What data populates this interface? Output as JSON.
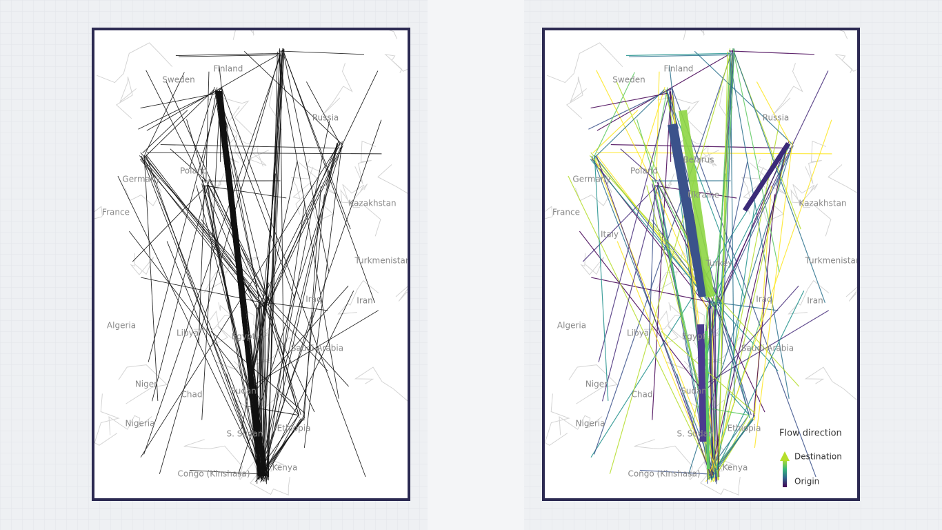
{
  "panels": [
    {
      "labels": [
        "Finland",
        "Sweden",
        "Russia",
        "Poland",
        "Germany",
        "France",
        "Kazakhstan",
        "Turkmenistan",
        "Iraq",
        "Iran",
        "Algeria",
        "Libya",
        "Egypt",
        "Saudi Arabia",
        "Niger",
        "Chad",
        "Sudan",
        "Nigeria",
        "Ethiopia",
        "S. Sudan",
        "Kenya",
        "Congo (Kinshasa)"
      ]
    },
    {
      "labels": [
        "Finland",
        "Sweden",
        "Russia",
        "Poland",
        "Germany",
        "France",
        "Kazakhstan",
        "Turkmenistan",
        "Iraq",
        "Iran",
        "Algeria",
        "Libya",
        "Egypt",
        "Saudi Arabia",
        "Niger",
        "Chad",
        "Sudan",
        "Nigeria",
        "Ethiopia",
        "S. Sudan",
        "Kenya",
        "Congo (Kinshasa)",
        "Belarus",
        "Ukraine",
        "Italy",
        "Turkey"
      ],
      "legend": {
        "title": "Flow direction",
        "top": "Destination",
        "bottom": "Origin"
      }
    }
  ]
}
